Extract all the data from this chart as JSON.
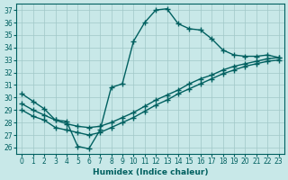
{
  "xlabel": "Humidex (Indice chaleur)",
  "ylabel": "",
  "bg_color": "#c8e8e8",
  "grid_color": "#a0c8c8",
  "line_color": "#006060",
  "xlim": [
    0,
    23
  ],
  "ylim": [
    26,
    37
  ],
  "yticks": [
    26,
    27,
    28,
    29,
    30,
    31,
    32,
    33,
    34,
    35,
    36,
    37
  ],
  "xticks": [
    0,
    1,
    2,
    3,
    4,
    5,
    6,
    7,
    8,
    9,
    10,
    11,
    12,
    13,
    14,
    15,
    16,
    17,
    18,
    19,
    20,
    21,
    22,
    23
  ],
  "line1_x": [
    0,
    1,
    2,
    3,
    4,
    5,
    6,
    7,
    8,
    9,
    10,
    11,
    12,
    13,
    14,
    15,
    16,
    17,
    18,
    19,
    20,
    21,
    22,
    23
  ],
  "line1_y": [
    30.3,
    29.7,
    29.1,
    28.2,
    28.1,
    26.1,
    25.9,
    27.4,
    30.8,
    31.1,
    34.5,
    36.0,
    37.0,
    37.1,
    35.9,
    35.5,
    35.4,
    34.7,
    33.8,
    33.4,
    33.3,
    33.3,
    33.4,
    33.2
  ],
  "line2_x": [
    0,
    1,
    2,
    3,
    4,
    5,
    6,
    7,
    8,
    9,
    10,
    11,
    12,
    13,
    14,
    15,
    16,
    17,
    18,
    19,
    20,
    21,
    22,
    23
  ],
  "line2_y": [
    29.0,
    28.5,
    28.2,
    27.6,
    27.4,
    27.2,
    27.0,
    27.2,
    27.6,
    28.0,
    28.4,
    28.9,
    29.4,
    29.8,
    30.3,
    30.7,
    31.1,
    31.5,
    31.9,
    32.2,
    32.5,
    32.7,
    32.9,
    33.0
  ],
  "line3_x": [
    0,
    1,
    2,
    3,
    4,
    5,
    6,
    7,
    8,
    9,
    10,
    11,
    12,
    13,
    14,
    15,
    16,
    17,
    18,
    19,
    20,
    21,
    22,
    23
  ],
  "line3_y": [
    29.5,
    29.0,
    28.6,
    28.2,
    27.9,
    27.7,
    27.6,
    27.7,
    28.0,
    28.4,
    28.8,
    29.3,
    29.8,
    30.2,
    30.6,
    31.1,
    31.5,
    31.8,
    32.2,
    32.5,
    32.7,
    32.9,
    33.1,
    33.2
  ]
}
